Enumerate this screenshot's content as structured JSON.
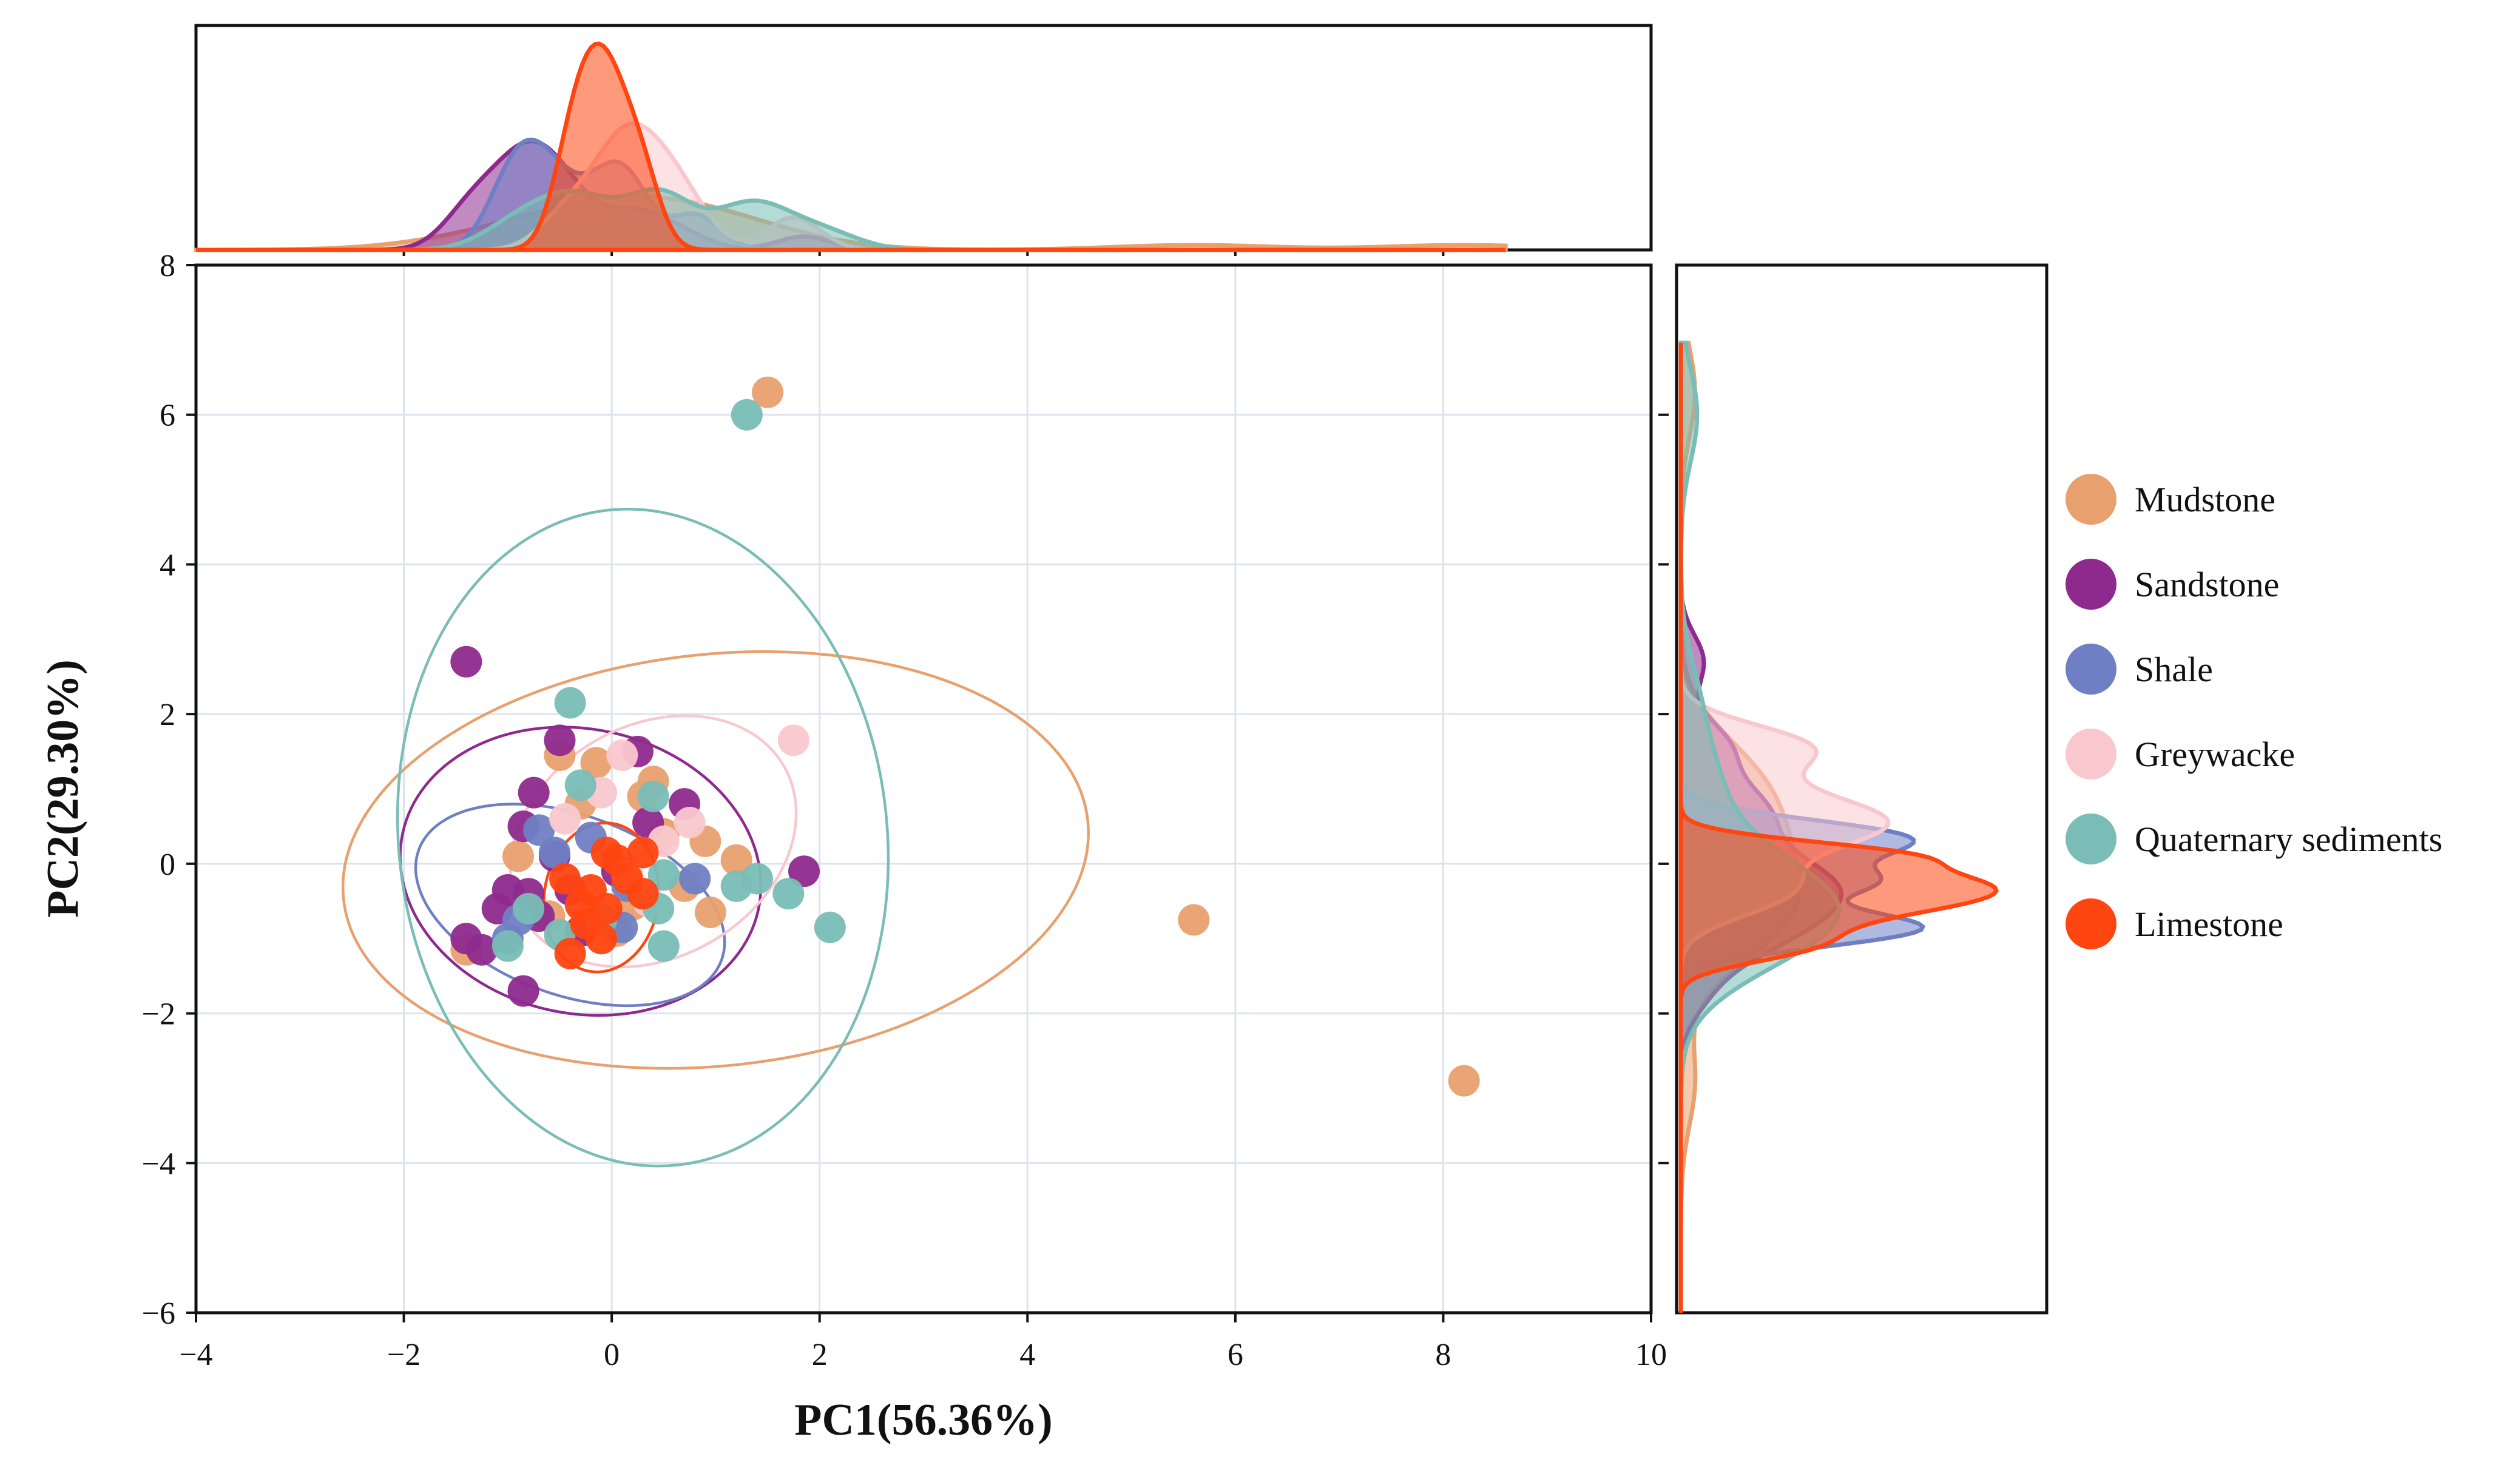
{
  "chart_data": {
    "type": "scatter",
    "title": "",
    "xlabel": "PC1(56.36%)",
    "ylabel": "PC2(29.30%)",
    "xlim": [
      -4,
      10
    ],
    "ylim": [
      -6,
      8
    ],
    "x_ticks": [
      -4,
      -2,
      0,
      2,
      4,
      6,
      8,
      10
    ],
    "y_ticks": [
      -6,
      -4,
      -2,
      0,
      2,
      4,
      6,
      8
    ],
    "x_tick_labels": [
      "−4",
      "−2",
      "0",
      "2",
      "4",
      "6",
      "8",
      "10"
    ],
    "y_tick_labels": [
      "−6",
      "−4",
      "−2",
      "0",
      "2",
      "4",
      "6",
      "8"
    ],
    "grid": true,
    "legend_position": "right",
    "marginal_plots": "density (KDE) per group on top (PC1) and right (PC2)",
    "series": [
      {
        "name": "Mudstone",
        "color": "#E8A06E",
        "points": [
          [
            1.5,
            6.3
          ],
          [
            5.6,
            -0.75
          ],
          [
            8.2,
            -2.9
          ],
          [
            -1.4,
            -1.15
          ],
          [
            -0.5,
            1.45
          ],
          [
            -0.15,
            1.35
          ],
          [
            0.4,
            1.1
          ],
          [
            0.9,
            0.3
          ],
          [
            1.2,
            0.05
          ],
          [
            0.95,
            -0.65
          ],
          [
            0.7,
            -0.3
          ],
          [
            0.2,
            -0.55
          ],
          [
            -0.6,
            -0.7
          ],
          [
            -0.3,
            0.8
          ],
          [
            0.5,
            0.4
          ],
          [
            0.05,
            -0.9
          ],
          [
            -0.9,
            0.1
          ],
          [
            0.3,
            0.9
          ]
        ],
        "ellipse": {
          "center": [
            1.0,
            0.05
          ],
          "semi_x": 3.6,
          "semi_y": 2.75,
          "angle_deg": -6
        }
      },
      {
        "name": "Sandstone",
        "color": "#8E2A8E",
        "points": [
          [
            -1.4,
            2.7
          ],
          [
            -0.5,
            1.65
          ],
          [
            0.25,
            1.5
          ],
          [
            -0.75,
            0.95
          ],
          [
            -0.85,
            0.5
          ],
          [
            -0.55,
            0.1
          ],
          [
            -0.8,
            -0.4
          ],
          [
            -1.1,
            -0.6
          ],
          [
            -1.4,
            -1.0
          ],
          [
            -1.25,
            -1.15
          ],
          [
            -0.7,
            -0.7
          ],
          [
            -0.4,
            -0.35
          ],
          [
            0.35,
            0.55
          ],
          [
            0.7,
            0.8
          ],
          [
            -0.85,
            -1.7
          ],
          [
            1.85,
            -0.1
          ],
          [
            -0.3,
            -0.9
          ],
          [
            -1.0,
            -0.35
          ],
          [
            0.05,
            -0.1
          ]
        ],
        "ellipse": {
          "center": [
            -0.3,
            -0.1
          ],
          "semi_x": 1.75,
          "semi_y": 1.9,
          "angle_deg": 12
        }
      },
      {
        "name": "Shale",
        "color": "#6F7FC4",
        "points": [
          [
            -0.7,
            0.45
          ],
          [
            -0.55,
            0.15
          ],
          [
            0.15,
            -0.3
          ],
          [
            0.8,
            -0.2
          ],
          [
            -1.0,
            -1.0
          ],
          [
            0.1,
            -0.85
          ],
          [
            -0.9,
            -0.75
          ],
          [
            -0.2,
            0.35
          ]
        ],
        "ellipse": {
          "center": [
            -0.4,
            -0.55
          ],
          "semi_x": 1.55,
          "semi_y": 1.2,
          "angle_deg": 20
        }
      },
      {
        "name": "Greywacke",
        "color": "#F9C8CF",
        "points": [
          [
            1.75,
            1.65
          ],
          [
            0.1,
            1.45
          ],
          [
            -0.1,
            0.95
          ],
          [
            0.75,
            0.55
          ],
          [
            0.5,
            0.3
          ],
          [
            -0.45,
            0.6
          ],
          [
            0.15,
            -0.15
          ],
          [
            0.35,
            -0.5
          ]
        ],
        "ellipse": {
          "center": [
            0.4,
            0.3
          ],
          "semi_x": 1.45,
          "semi_y": 1.55,
          "angle_deg": -30
        }
      },
      {
        "name": "Quaternary sediments",
        "color": "#79BDB6",
        "points": [
          [
            1.3,
            6.0
          ],
          [
            -0.4,
            2.15
          ],
          [
            -0.3,
            1.05
          ],
          [
            0.4,
            0.9
          ],
          [
            1.2,
            -0.3
          ],
          [
            1.4,
            -0.2
          ],
          [
            1.7,
            -0.4
          ],
          [
            2.1,
            -0.85
          ],
          [
            0.5,
            -1.1
          ],
          [
            -0.5,
            -0.95
          ],
          [
            -1.0,
            -1.1
          ],
          [
            0.5,
            -0.15
          ],
          [
            0.45,
            -0.6
          ],
          [
            -0.1,
            -0.75
          ],
          [
            -0.8,
            -0.6
          ]
        ],
        "ellipse": {
          "center": [
            0.3,
            0.35
          ],
          "semi_x": 2.35,
          "semi_y": 4.4,
          "angle_deg": -6
        }
      },
      {
        "name": "Limestone",
        "color": "#FF4510",
        "points": [
          [
            -0.05,
            0.15
          ],
          [
            0.05,
            0.05
          ],
          [
            0.3,
            0.15
          ],
          [
            0.15,
            -0.2
          ],
          [
            -0.45,
            -0.2
          ],
          [
            -0.3,
            -0.55
          ],
          [
            -0.2,
            -0.35
          ],
          [
            0.3,
            -0.4
          ],
          [
            -0.25,
            -0.8
          ],
          [
            -0.1,
            -1.0
          ],
          [
            -0.4,
            -1.2
          ],
          [
            -0.05,
            -0.6
          ]
        ],
        "ellipse": {
          "center": [
            -0.1,
            -0.45
          ],
          "semi_x": 0.55,
          "semi_y": 1.0,
          "angle_deg": 8
        }
      }
    ]
  }
}
